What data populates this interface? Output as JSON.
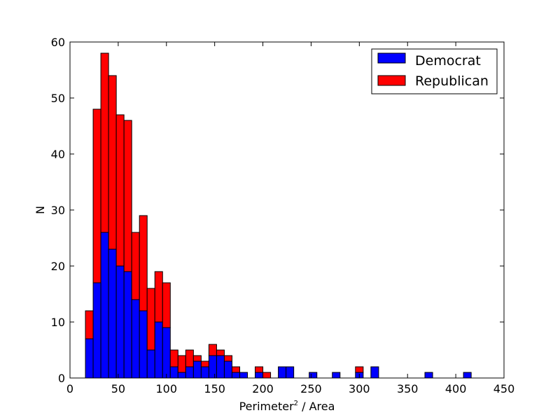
{
  "chart_data": {
    "type": "bar",
    "stacked": true,
    "xlabel": "Perimeter",
    "xlabel_sup": "2",
    "xlabel_suffix": " / Area",
    "ylabel": "N",
    "xlim": [
      0,
      450
    ],
    "ylim": [
      0,
      60
    ],
    "xticks": [
      "0",
      "50",
      "100",
      "150",
      "200",
      "250",
      "300",
      "350",
      "400",
      "450"
    ],
    "yticks": [
      "0",
      "10",
      "20",
      "30",
      "40",
      "50",
      "60"
    ],
    "bin_width": 8,
    "legend_position": "top-right",
    "x": [
      20,
      28,
      36,
      44,
      52,
      60,
      68,
      76,
      84,
      92,
      100,
      108,
      116,
      124,
      132,
      140,
      148,
      156,
      164,
      172,
      180,
      188,
      196,
      204,
      212,
      220,
      228,
      236,
      244,
      252,
      260,
      268,
      276,
      284,
      292,
      300,
      308,
      316,
      324,
      332,
      340,
      348,
      356,
      364,
      372,
      380,
      388,
      396,
      404,
      412,
      420
    ],
    "series": [
      {
        "name": "Democrat",
        "color": "#0000ff",
        "values": [
          7,
          17,
          26,
          23,
          20,
          19,
          14,
          12,
          5,
          10,
          9,
          2,
          1,
          2,
          3,
          2,
          4,
          4,
          3,
          1,
          1,
          0,
          1,
          0,
          0,
          2,
          2,
          0,
          0,
          1,
          0,
          0,
          1,
          0,
          0,
          1,
          0,
          2,
          0,
          0,
          0,
          0,
          0,
          0,
          1,
          0,
          0,
          0,
          0,
          1,
          0
        ]
      },
      {
        "name": "Republican",
        "color": "#ff0000",
        "values": [
          5,
          31,
          32,
          31,
          27,
          27,
          12,
          17,
          11,
          9,
          8,
          3,
          3,
          3,
          1,
          1,
          2,
          1,
          1,
          1,
          0,
          0,
          1,
          1,
          0,
          0,
          0,
          0,
          0,
          0,
          0,
          0,
          0,
          0,
          0,
          1,
          0,
          0,
          0,
          0,
          0,
          0,
          0,
          0,
          0,
          0,
          0,
          0,
          0,
          0,
          0
        ]
      }
    ]
  }
}
